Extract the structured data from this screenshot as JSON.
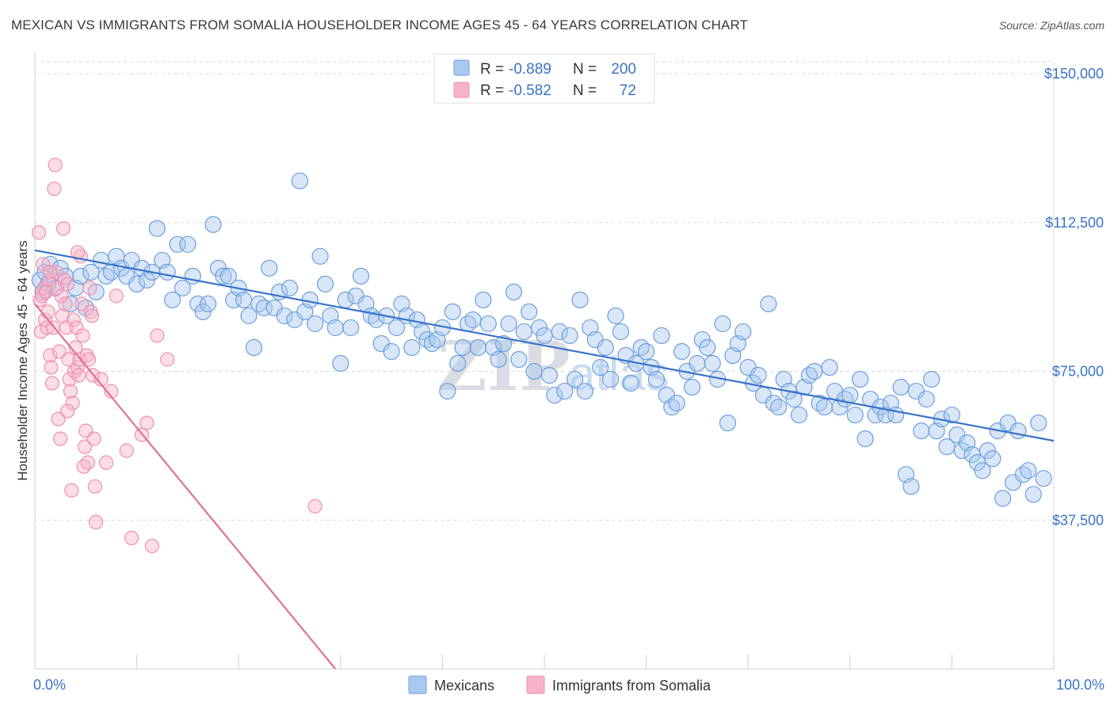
{
  "title": "MEXICAN VS IMMIGRANTS FROM SOMALIA HOUSEHOLDER INCOME AGES 45 - 64 YEARS CORRELATION CHART",
  "source": "Source: ZipAtlas.com",
  "watermark": {
    "zip": "ZIP",
    "atlas": "atlas"
  },
  "legend_top": {
    "r_label": "R =",
    "n_label": "N =",
    "rows": [
      {
        "r": "-0.889",
        "n": "200",
        "color": "#a9c8ee"
      },
      {
        "r": "-0.582",
        "n": "72",
        "color": "#f6b3c8"
      }
    ]
  },
  "chart_data": {
    "type": "scatter",
    "ylabel": "Householder Income Ages 45 - 64 years",
    "xlim": [
      0,
      100
    ],
    "ylim": [
      0,
      153000
    ],
    "x_tick_labels": [
      "0.0%",
      "100.0%"
    ],
    "y_ticks": [
      37500,
      75000,
      112500,
      150000
    ],
    "y_tick_labels": [
      "$37,500",
      "$75,000",
      "$112,500",
      "$150,000"
    ],
    "grid": "horizontal dashed",
    "series": [
      {
        "name": "Mexicans",
        "color": "#6a9fdd",
        "fill": "#a9c8ee",
        "line_color": "#3a73c8",
        "trend": {
          "x": [
            0,
            100
          ],
          "y": [
            105500,
            57500
          ]
        },
        "points": [
          [
            0.5,
            98
          ],
          [
            0.8,
            95
          ],
          [
            1.0,
            100
          ],
          [
            1.3,
            97
          ],
          [
            1.5,
            102
          ],
          [
            2.0,
            96
          ],
          [
            2.5,
            101
          ],
          [
            3.0,
            99
          ],
          [
            3.5,
            92
          ],
          [
            4.0,
            96
          ],
          [
            4.5,
            99
          ],
          [
            5.0,
            91
          ],
          [
            5.5,
            100
          ],
          [
            6.0,
            95
          ],
          [
            6.5,
            103
          ],
          [
            7.0,
            99
          ],
          [
            7.5,
            100
          ],
          [
            8.0,
            104
          ],
          [
            8.5,
            101
          ],
          [
            9.0,
            99
          ],
          [
            9.5,
            103
          ],
          [
            10.0,
            97
          ],
          [
            10.5,
            101
          ],
          [
            11.0,
            98
          ],
          [
            11.5,
            100
          ],
          [
            12.0,
            111
          ],
          [
            12.5,
            103
          ],
          [
            13.0,
            100
          ],
          [
            13.5,
            93
          ],
          [
            14.0,
            107
          ],
          [
            14.5,
            96
          ],
          [
            15.0,
            107
          ],
          [
            15.5,
            99
          ],
          [
            16.0,
            92
          ],
          [
            16.5,
            90
          ],
          [
            17.0,
            92
          ],
          [
            17.5,
            112
          ],
          [
            18.0,
            101
          ],
          [
            18.5,
            99
          ],
          [
            19.0,
            99
          ],
          [
            19.5,
            93
          ],
          [
            20.0,
            96
          ],
          [
            20.5,
            93
          ],
          [
            21.0,
            89
          ],
          [
            21.5,
            81
          ],
          [
            22.0,
            92
          ],
          [
            22.5,
            91
          ],
          [
            23.0,
            101
          ],
          [
            23.5,
            91
          ],
          [
            24.0,
            95
          ],
          [
            24.5,
            89
          ],
          [
            25.0,
            96
          ],
          [
            25.5,
            88
          ],
          [
            26.0,
            123
          ],
          [
            26.5,
            90
          ],
          [
            27.0,
            93
          ],
          [
            27.5,
            87
          ],
          [
            28.0,
            104
          ],
          [
            28.5,
            97
          ],
          [
            29.0,
            89
          ],
          [
            29.5,
            86
          ],
          [
            30.0,
            77
          ],
          [
            30.5,
            93
          ],
          [
            31.0,
            86
          ],
          [
            31.5,
            94
          ],
          [
            32.0,
            99
          ],
          [
            32.5,
            92
          ],
          [
            33.0,
            89
          ],
          [
            33.5,
            88
          ],
          [
            34.0,
            82
          ],
          [
            34.5,
            89
          ],
          [
            35.0,
            80
          ],
          [
            35.5,
            86
          ],
          [
            36.0,
            92
          ],
          [
            36.5,
            89
          ],
          [
            37.0,
            81
          ],
          [
            37.5,
            88
          ],
          [
            38.0,
            85
          ],
          [
            38.5,
            83
          ],
          [
            39.0,
            82
          ],
          [
            39.5,
            83
          ],
          [
            40.0,
            86
          ],
          [
            40.5,
            70
          ],
          [
            41.0,
            90
          ],
          [
            41.5,
            77
          ],
          [
            42.0,
            81
          ],
          [
            42.5,
            87
          ],
          [
            43.0,
            88
          ],
          [
            43.5,
            81
          ],
          [
            44.0,
            93
          ],
          [
            44.5,
            87
          ],
          [
            45.0,
            81
          ],
          [
            45.5,
            78
          ],
          [
            46.0,
            82
          ],
          [
            46.5,
            87
          ],
          [
            47.0,
            95
          ],
          [
            47.5,
            78
          ],
          [
            48.0,
            85
          ],
          [
            48.5,
            90
          ],
          [
            49.0,
            75
          ],
          [
            49.5,
            86
          ],
          [
            50.0,
            84
          ],
          [
            50.5,
            74
          ],
          [
            51.0,
            69
          ],
          [
            51.5,
            85
          ],
          [
            52.0,
            70
          ],
          [
            52.5,
            84
          ],
          [
            53.0,
            73
          ],
          [
            53.5,
            93
          ],
          [
            54.0,
            70
          ],
          [
            54.5,
            86
          ],
          [
            55.0,
            83
          ],
          [
            55.5,
            76
          ],
          [
            56.0,
            81
          ],
          [
            56.5,
            73
          ],
          [
            57.0,
            89
          ],
          [
            57.5,
            85
          ],
          [
            58.0,
            79
          ],
          [
            58.5,
            72
          ],
          [
            59.0,
            77
          ],
          [
            59.5,
            81
          ],
          [
            60.0,
            80
          ],
          [
            60.5,
            76
          ],
          [
            61.0,
            73
          ],
          [
            61.5,
            84
          ],
          [
            62.0,
            69
          ],
          [
            62.5,
            66
          ],
          [
            63.0,
            67
          ],
          [
            63.5,
            80
          ],
          [
            64.0,
            75
          ],
          [
            64.5,
            71
          ],
          [
            65.0,
            77
          ],
          [
            65.5,
            83
          ],
          [
            66.0,
            81
          ],
          [
            66.5,
            77
          ],
          [
            67.0,
            73
          ],
          [
            67.5,
            87
          ],
          [
            68.0,
            62
          ],
          [
            68.5,
            79
          ],
          [
            69.0,
            82
          ],
          [
            69.5,
            85
          ],
          [
            70.0,
            76
          ],
          [
            70.5,
            72
          ],
          [
            71.0,
            74
          ],
          [
            71.5,
            69
          ],
          [
            72.0,
            92
          ],
          [
            72.5,
            67
          ],
          [
            73.0,
            66
          ],
          [
            73.5,
            73
          ],
          [
            74.0,
            70
          ],
          [
            74.5,
            68
          ],
          [
            75.0,
            64
          ],
          [
            75.5,
            71
          ],
          [
            76.0,
            74
          ],
          [
            76.5,
            75
          ],
          [
            77.0,
            67
          ],
          [
            77.5,
            66
          ],
          [
            78.0,
            76
          ],
          [
            78.5,
            70
          ],
          [
            79.0,
            66
          ],
          [
            79.5,
            68
          ],
          [
            80.0,
            69
          ],
          [
            80.5,
            64
          ],
          [
            81.0,
            73
          ],
          [
            81.5,
            58
          ],
          [
            82.0,
            68
          ],
          [
            82.5,
            64
          ],
          [
            83.0,
            66
          ],
          [
            83.5,
            64
          ],
          [
            84.0,
            67
          ],
          [
            84.5,
            64
          ],
          [
            85.0,
            71
          ],
          [
            85.5,
            49
          ],
          [
            86.0,
            46
          ],
          [
            86.5,
            70
          ],
          [
            87.0,
            60
          ],
          [
            87.5,
            68
          ],
          [
            88.0,
            73
          ],
          [
            88.5,
            60
          ],
          [
            89.0,
            63
          ],
          [
            89.5,
            56
          ],
          [
            90.0,
            64
          ],
          [
            90.5,
            59
          ],
          [
            91.0,
            55
          ],
          [
            91.5,
            57
          ],
          [
            92.0,
            54
          ],
          [
            92.5,
            52
          ],
          [
            93.0,
            50
          ],
          [
            93.5,
            55
          ],
          [
            94.0,
            53
          ],
          [
            94.5,
            60
          ],
          [
            95.0,
            43
          ],
          [
            95.5,
            62
          ],
          [
            96.0,
            47
          ],
          [
            96.5,
            60
          ],
          [
            97.0,
            49
          ],
          [
            97.5,
            50
          ],
          [
            98.0,
            44
          ],
          [
            98.5,
            62
          ],
          [
            99.0,
            48
          ]
        ]
      },
      {
        "name": "Immigrants from Somalia",
        "color": "#ef8fb0",
        "fill": "#f6b3c8",
        "line_color": "#e0709a",
        "trend": {
          "x": [
            0,
            29.5
          ],
          "y": [
            92000,
            0
          ]
        },
        "points": [
          [
            0.4,
            110
          ],
          [
            0.5,
            93
          ],
          [
            0.6,
            85
          ],
          [
            0.7,
            94
          ],
          [
            0.8,
            102
          ],
          [
            0.9,
            96
          ],
          [
            1.0,
            88
          ],
          [
            1.1,
            95
          ],
          [
            1.2,
            86
          ],
          [
            1.3,
            90
          ],
          [
            1.4,
            98
          ],
          [
            1.5,
            79
          ],
          [
            1.6,
            76
          ],
          [
            1.7,
            72
          ],
          [
            1.8,
            86
          ],
          [
            1.9,
            121
          ],
          [
            2.0,
            127
          ],
          [
            2.1,
            100
          ],
          [
            2.2,
            96
          ],
          [
            2.3,
            63
          ],
          [
            2.4,
            80
          ],
          [
            2.5,
            58
          ],
          [
            2.6,
            94
          ],
          [
            2.7,
            89
          ],
          [
            2.8,
            111
          ],
          [
            2.9,
            98
          ],
          [
            3.0,
            92
          ],
          [
            3.1,
            86
          ],
          [
            3.2,
            97
          ],
          [
            3.3,
            78
          ],
          [
            3.4,
            73
          ],
          [
            3.5,
            70
          ],
          [
            3.6,
            45
          ],
          [
            3.7,
            67
          ],
          [
            3.8,
            88
          ],
          [
            3.9,
            75
          ],
          [
            4.0,
            81
          ],
          [
            4.1,
            86
          ],
          [
            4.2,
            76
          ],
          [
            4.3,
            74
          ],
          [
            4.4,
            78
          ],
          [
            4.5,
            104
          ],
          [
            4.6,
            92
          ],
          [
            4.7,
            84
          ],
          [
            4.8,
            51
          ],
          [
            4.9,
            56
          ],
          [
            5.0,
            60
          ],
          [
            5.1,
            79
          ],
          [
            5.2,
            52
          ],
          [
            5.3,
            78
          ],
          [
            5.4,
            96
          ],
          [
            5.5,
            90
          ],
          [
            5.6,
            89
          ],
          [
            5.7,
            74
          ],
          [
            5.8,
            58
          ],
          [
            5.9,
            46
          ],
          [
            6.0,
            37
          ],
          [
            6.5,
            73
          ],
          [
            7.0,
            52
          ],
          [
            7.5,
            70
          ],
          [
            8.0,
            94
          ],
          [
            9.0,
            55
          ],
          [
            9.5,
            33
          ],
          [
            10.5,
            59
          ],
          [
            11.0,
            62
          ],
          [
            11.5,
            31
          ],
          [
            12.0,
            84
          ],
          [
            13.0,
            78
          ],
          [
            4.2,
            105
          ],
          [
            1.5,
            100
          ],
          [
            3.2,
            65
          ],
          [
            27.5,
            41
          ]
        ]
      }
    ]
  }
}
